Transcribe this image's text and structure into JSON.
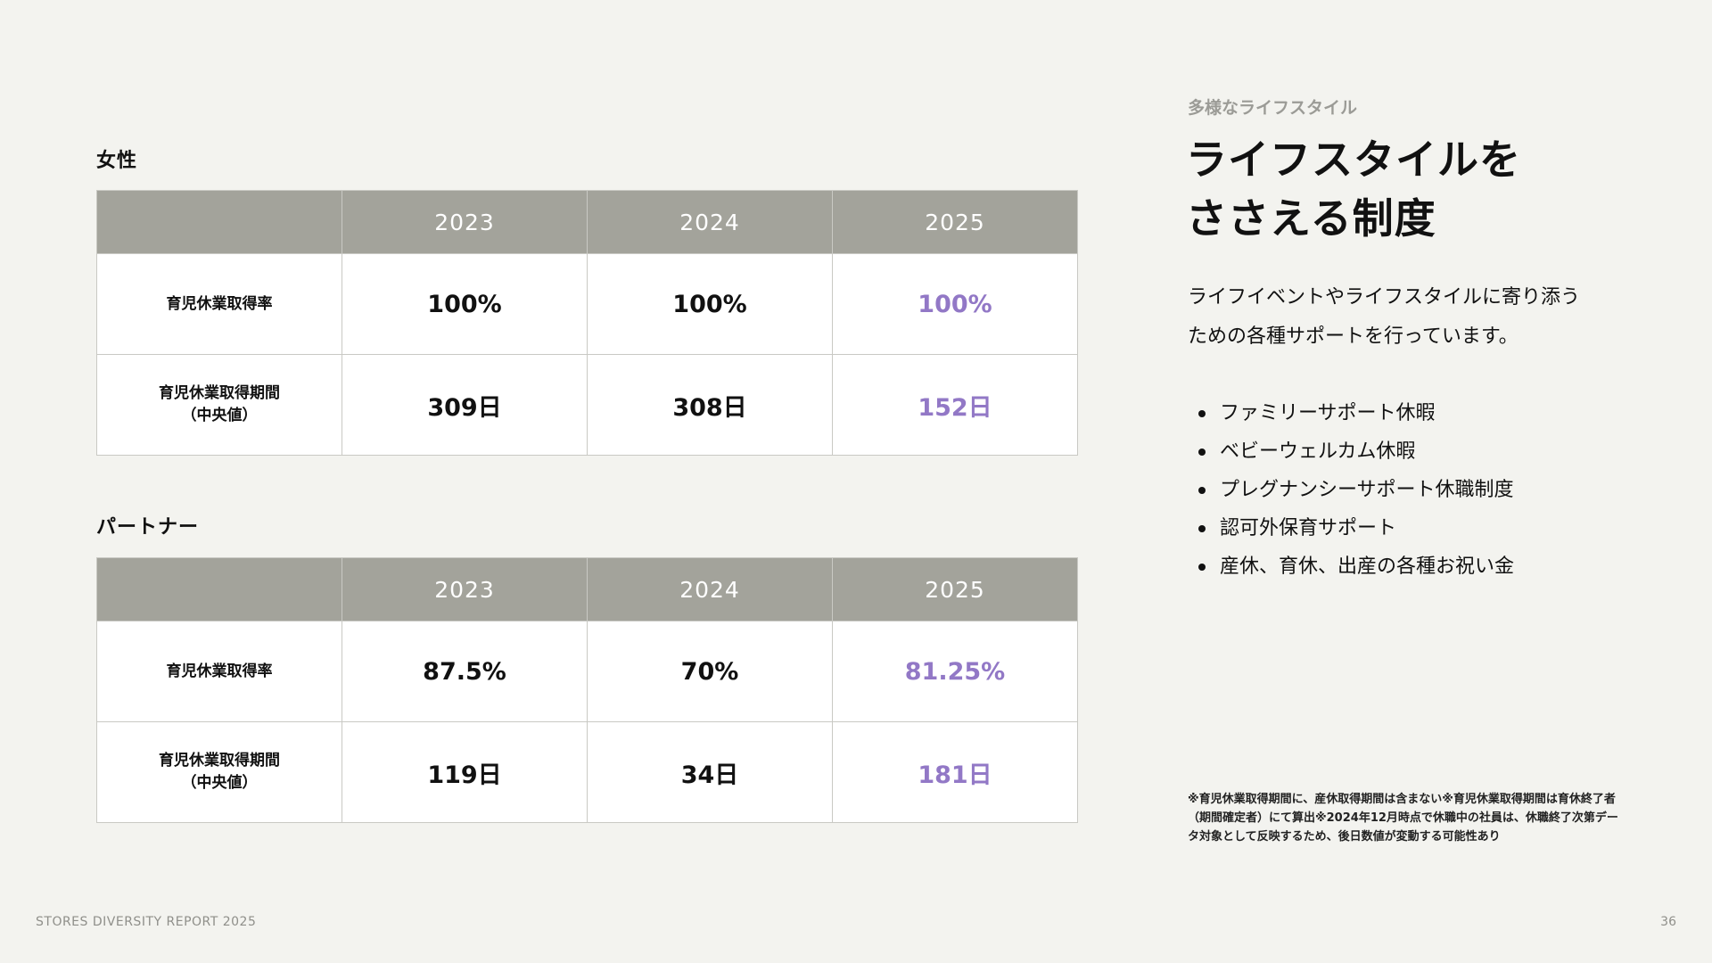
{
  "sections": [
    {
      "title": "女性",
      "years": [
        "2023",
        "2024",
        "2025"
      ],
      "rows": [
        {
          "label": [
            "育児休業取得率"
          ],
          "values": [
            "100%",
            "100%",
            "100%"
          ]
        },
        {
          "label": [
            "育児休業取得期間",
            "（中央値）"
          ],
          "values": [
            "309日",
            "308日",
            "152日"
          ]
        }
      ]
    },
    {
      "title": "パートナー",
      "years": [
        "2023",
        "2024",
        "2025"
      ],
      "rows": [
        {
          "label": [
            "育児休業取得率"
          ],
          "values": [
            "87.5%",
            "70%",
            "81.25%"
          ]
        },
        {
          "label": [
            "育児休業取得期間",
            "（中央値）"
          ],
          "values": [
            "119日",
            "34日",
            "181日"
          ]
        }
      ]
    }
  ],
  "side": {
    "eyebrow": "多様なライフスタイル",
    "heading": [
      "ライフスタイルを",
      "ささえる制度"
    ],
    "lead": [
      "ライフイベントやライフスタイルに寄り添う",
      "ための各種サポートを行っています。"
    ],
    "items": [
      "ファミリーサポート休暇",
      "ベビーウェルカム休暇",
      "プレグナンシーサポート休職制度",
      "認可外保育サポート",
      "産休、育休、出産の各種お祝い金"
    ],
    "note": "※育児休業取得期間に、産休取得期間は含まない※育児休業取得期間は育休終了者（期間確定者）にて算出※2024年12月時点で休職中の社員は、休職終了次第データ対象として反映するため、後日数値が変動する可能性あり"
  },
  "footer": {
    "report": "STORES DIVERSITY REPORT 2025",
    "page": "36"
  },
  "colors": {
    "accent": "#9278c6",
    "header_bg": "#a3a39b",
    "page_bg": "#f3f3ef"
  }
}
